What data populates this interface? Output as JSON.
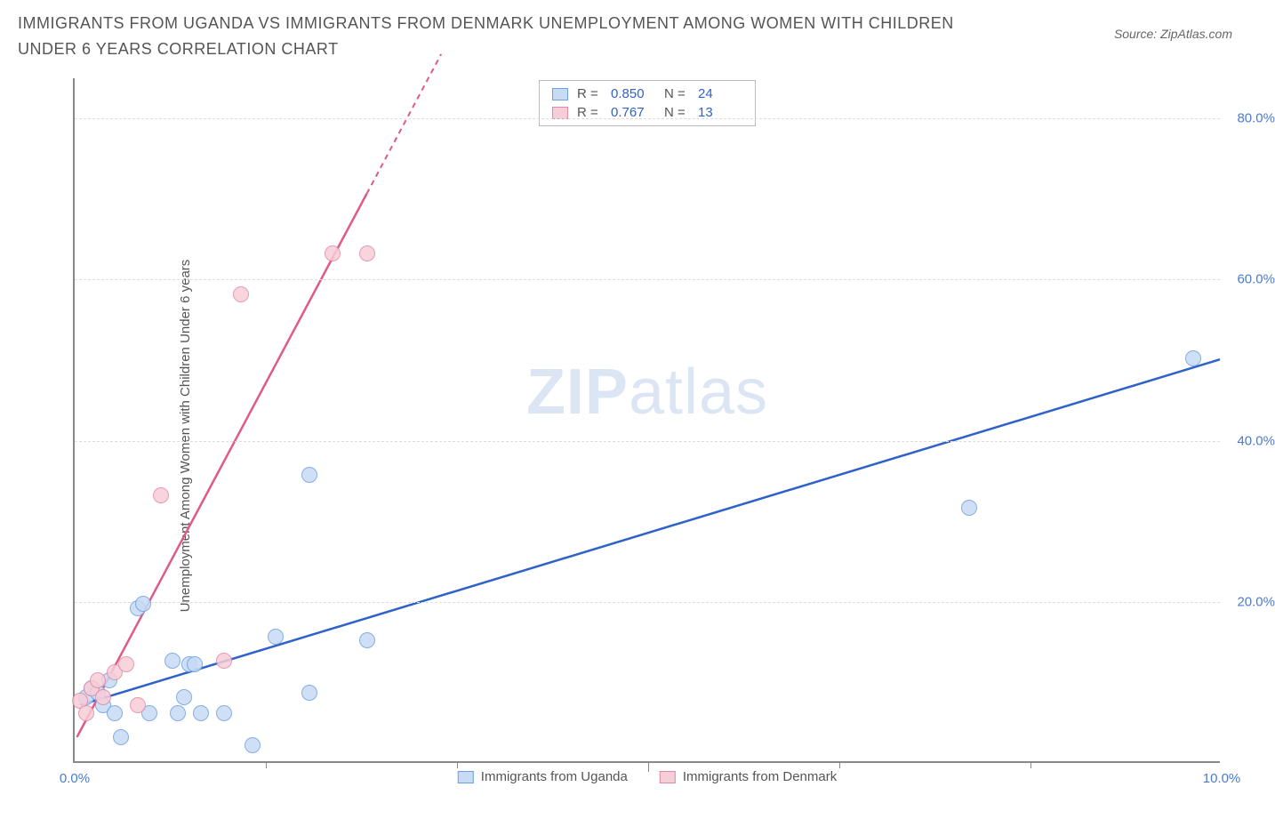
{
  "header": {
    "title": "IMMIGRANTS FROM UGANDA VS IMMIGRANTS FROM DENMARK UNEMPLOYMENT AMONG WOMEN WITH CHILDREN UNDER 6 YEARS CORRELATION CHART",
    "source_prefix": "Source: ",
    "source_name": "ZipAtlas.com"
  },
  "chart": {
    "type": "scatter",
    "y_axis_label": "Unemployment Among Women with Children Under 6 years",
    "xlim": [
      0,
      10
    ],
    "ylim": [
      0,
      85
    ],
    "x_ticks": [
      0.0,
      10.0
    ],
    "x_tick_labels": [
      "0.0%",
      "10.0%"
    ],
    "x_minor_ticks": [
      1.667,
      3.333,
      5.0,
      6.667,
      8.333
    ],
    "x_minor_tick_heights_frac": [
      0.01,
      0.01,
      0.015,
      0.01,
      0.01
    ],
    "y_ticks": [
      20,
      40,
      60,
      80
    ],
    "y_tick_labels": [
      "20.0%",
      "40.0%",
      "60.0%",
      "80.0%"
    ],
    "grid_color": "#dddddd",
    "axis_color": "#888888",
    "background_color": "#ffffff",
    "watermark": {
      "zip": "ZIP",
      "atlas": "atlas"
    },
    "series": [
      {
        "name": "Immigrants from Uganda",
        "color_fill": "#c7dbf5",
        "color_stroke": "#6e9fe0",
        "trend_color": "#2f62c9",
        "marker_radius": 9,
        "marker_opacity": 0.85,
        "R": "0.850",
        "N": "24",
        "trend": {
          "x1": 0.05,
          "y1": 7.0,
          "x2": 10.0,
          "y2": 50.0,
          "dashed_from_x": null
        },
        "points": [
          {
            "x": 0.1,
            "y": 8.0
          },
          {
            "x": 0.15,
            "y": 9.0
          },
          {
            "x": 0.2,
            "y": 8.5
          },
          {
            "x": 0.25,
            "y": 7.0
          },
          {
            "x": 0.3,
            "y": 10.0
          },
          {
            "x": 0.35,
            "y": 6.0
          },
          {
            "x": 0.4,
            "y": 3.0
          },
          {
            "x": 0.55,
            "y": 19.0
          },
          {
            "x": 0.6,
            "y": 19.5
          },
          {
            "x": 0.65,
            "y": 6.0
          },
          {
            "x": 0.85,
            "y": 12.5
          },
          {
            "x": 0.9,
            "y": 6.0
          },
          {
            "x": 0.95,
            "y": 8.0
          },
          {
            "x": 1.0,
            "y": 12.0
          },
          {
            "x": 1.05,
            "y": 12.0
          },
          {
            "x": 1.1,
            "y": 6.0
          },
          {
            "x": 1.3,
            "y": 6.0
          },
          {
            "x": 1.55,
            "y": 2.0
          },
          {
            "x": 1.75,
            "y": 15.5
          },
          {
            "x": 2.05,
            "y": 35.5
          },
          {
            "x": 2.05,
            "y": 8.5
          },
          {
            "x": 2.55,
            "y": 15.0
          },
          {
            "x": 7.8,
            "y": 31.5
          },
          {
            "x": 9.75,
            "y": 50.0
          }
        ]
      },
      {
        "name": "Immigrants from Denmark",
        "color_fill": "#f7cdd8",
        "color_stroke": "#e28aa5",
        "trend_color": "#e05a87",
        "marker_radius": 9,
        "marker_opacity": 0.85,
        "R": "0.767",
        "N": "13",
        "trend": {
          "x1": 0.02,
          "y1": 3.0,
          "x2": 3.2,
          "y2": 88.0,
          "dashed_from_x": 2.55
        },
        "points": [
          {
            "x": 0.05,
            "y": 7.5
          },
          {
            "x": 0.1,
            "y": 6.0
          },
          {
            "x": 0.15,
            "y": 9.0
          },
          {
            "x": 0.2,
            "y": 10.0
          },
          {
            "x": 0.25,
            "y": 8.0
          },
          {
            "x": 0.35,
            "y": 11.0
          },
          {
            "x": 0.45,
            "y": 12.0
          },
          {
            "x": 0.55,
            "y": 7.0
          },
          {
            "x": 0.75,
            "y": 33.0
          },
          {
            "x": 1.3,
            "y": 12.5
          },
          {
            "x": 1.45,
            "y": 58.0
          },
          {
            "x": 2.25,
            "y": 63.0
          },
          {
            "x": 2.55,
            "y": 63.0
          }
        ]
      }
    ],
    "legend_top": {
      "r_label": "R =",
      "n_label": "N ="
    }
  }
}
